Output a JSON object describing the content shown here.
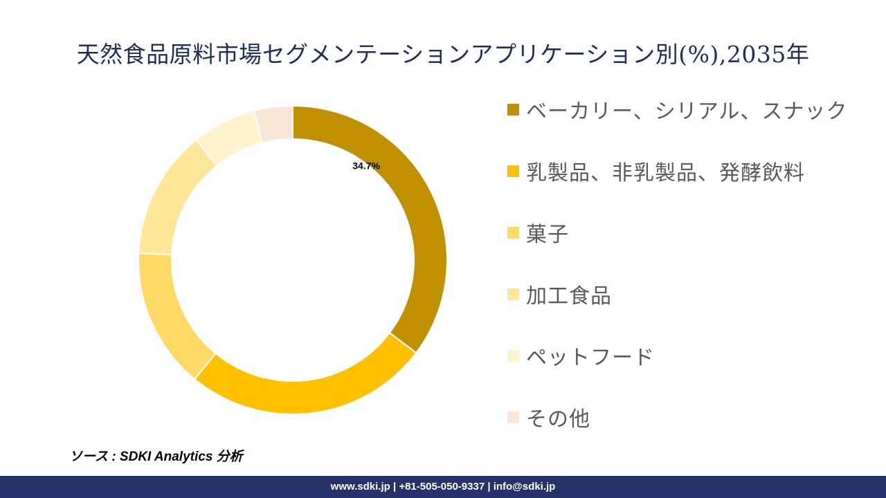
{
  "title": "天然食品原料市場セグメンテーションアプリケーション別(%),2035年",
  "chart_data": {
    "type": "pie",
    "donut": true,
    "title": "天然食品原料市場セグメンテーションアプリケーション別(%),2035年",
    "categories": [
      "ベーカリー、シリアル、スナック",
      "乳製品、非乳製品、発酵飲料",
      "菓子",
      "加工食品",
      "ペットフード",
      "その他"
    ],
    "values": [
      34.7,
      25.3,
      14.5,
      13.3,
      6.6,
      4.0
    ],
    "colors": [
      "#bf9000",
      "#ffc000",
      "#ffd966",
      "#ffe699",
      "#fff2cc",
      "#fbe5d6"
    ],
    "data_labels": [
      {
        "index": 0,
        "text": "34.7%"
      }
    ],
    "legend_position": "right"
  },
  "source": "ソース : SDKI Analytics 分析",
  "footer": "www.sdki.jp | +81-505-050-9337 | info@sdki.jp"
}
